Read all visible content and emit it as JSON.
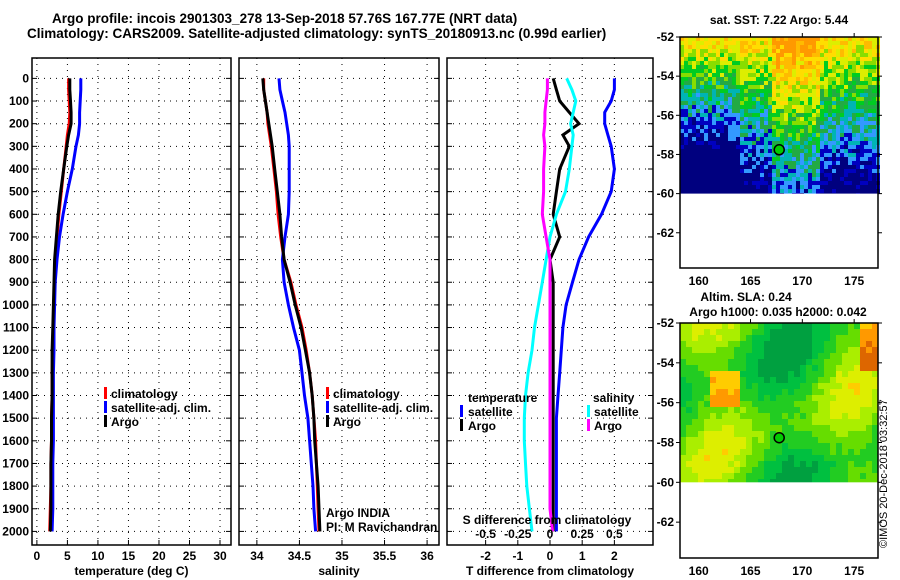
{
  "title_line1": "Argo profile: incois 2901303_278 13-Sep-2018 57.76S 167.77E (NRT data)",
  "title_line2": "Climatology: CARS2009. Satellite-adjusted climatology: synTS_20180913.nc (0.99d earlier)",
  "credit": "©IMOS 20-Dec-2018 03:32:57",
  "colors": {
    "climatology": "#ff0000",
    "satellite": "#0000ff",
    "argo": "#000000",
    "sal_sat": "#00ffff",
    "sal_argo": "#ff00ff"
  },
  "depth_ticks": [
    "0",
    "100",
    "200",
    "300",
    "400",
    "500",
    "600",
    "700",
    "800",
    "900",
    "1000",
    "1100",
    "1200",
    "1300",
    "1400",
    "1500",
    "1600",
    "1700",
    "1800",
    "1900",
    "2000"
  ],
  "chart_data": [
    {
      "type": "line",
      "id": "temperature",
      "xlabel": "temperature (deg C)",
      "ylabel": "depth",
      "xlim": [
        -0.8,
        31.8
      ],
      "ylim": [
        2060,
        -90
      ],
      "xticks": [
        "0",
        "5",
        "10",
        "15",
        "20",
        "25",
        "30"
      ],
      "legend": [
        "climatology",
        "satellite-adj. clim.",
        "Argo"
      ],
      "depth": [
        0,
        50,
        100,
        150,
        200,
        250,
        300,
        400,
        500,
        600,
        700,
        800,
        900,
        1000,
        1100,
        1200,
        1300,
        1400,
        1500,
        1600,
        1700,
        1800,
        1900,
        2000
      ],
      "series": [
        {
          "name": "climatology",
          "color": "#ff0000",
          "values": [
            5.2,
            5.2,
            5.3,
            5.4,
            5.3,
            5.0,
            4.8,
            4.4,
            4.0,
            3.6,
            3.3,
            3.0,
            2.9,
            2.8,
            2.7,
            2.6,
            2.5,
            2.5,
            2.4,
            2.4,
            2.3,
            2.3,
            2.2,
            2.1
          ]
        },
        {
          "name": "satellite-adj. clim.",
          "color": "#0000ff",
          "values": [
            7.2,
            7.2,
            7.1,
            7.0,
            7.0,
            6.8,
            6.4,
            5.8,
            5.0,
            4.3,
            3.7,
            3.3,
            3.0,
            2.9,
            2.8,
            2.8,
            2.7,
            2.7,
            2.7,
            2.7,
            2.6,
            2.6,
            2.6,
            2.5
          ]
        },
        {
          "name": "Argo",
          "color": "#000000",
          "values": [
            5.4,
            5.4,
            5.5,
            5.6,
            5.6,
            5.2,
            4.9,
            4.4,
            3.9,
            3.5,
            3.2,
            2.9,
            2.8,
            2.7,
            2.6,
            2.5,
            2.5,
            2.5,
            2.4,
            2.4,
            2.3,
            2.3,
            2.3,
            2.2
          ]
        }
      ]
    },
    {
      "type": "line",
      "id": "salinity",
      "xlabel": "salinity",
      "ylabel": "depth",
      "xlim": [
        33.79,
        36.14
      ],
      "ylim": [
        2060,
        -90
      ],
      "xticks": [
        "34",
        "34.5",
        "35",
        "35.5",
        "36"
      ],
      "legend": [
        "climatology",
        "satellite-adj. clim.",
        "Argo"
      ],
      "annotation": [
        "Argo INDIA",
        "PI: M Ravichandran"
      ],
      "depth": [
        0,
        50,
        100,
        150,
        200,
        250,
        300,
        400,
        500,
        600,
        700,
        800,
        900,
        1000,
        1100,
        1200,
        1300,
        1400,
        1500,
        1600,
        1700,
        1800,
        1900,
        2000
      ],
      "series": [
        {
          "name": "climatology",
          "color": "#ff0000",
          "values": [
            34.08,
            34.08,
            34.1,
            34.12,
            34.13,
            34.15,
            34.17,
            34.2,
            34.23,
            34.25,
            34.28,
            34.32,
            34.4,
            34.46,
            34.53,
            34.58,
            34.62,
            34.65,
            34.67,
            34.69,
            34.7,
            34.71,
            34.72,
            34.73
          ]
        },
        {
          "name": "satellite-adj. clim.",
          "color": "#0000ff",
          "values": [
            34.26,
            34.27,
            34.3,
            34.33,
            34.35,
            34.37,
            34.38,
            34.38,
            34.38,
            34.37,
            34.33,
            34.3,
            34.32,
            34.37,
            34.43,
            34.5,
            34.53,
            34.56,
            34.6,
            34.62,
            34.64,
            34.66,
            34.67,
            34.69
          ]
        },
        {
          "name": "Argo",
          "color": "#000000",
          "values": [
            34.07,
            34.08,
            34.1,
            34.12,
            34.14,
            34.16,
            34.18,
            34.21,
            34.24,
            34.27,
            34.29,
            34.32,
            34.39,
            34.45,
            34.52,
            34.57,
            34.62,
            34.65,
            34.67,
            34.68,
            34.7,
            34.72,
            34.73,
            34.74
          ]
        }
      ]
    },
    {
      "type": "line",
      "id": "difference",
      "xlabel": "T difference from climatology",
      "x2label": "S difference from climatology",
      "xlim": [
        -3.2,
        3.2
      ],
      "x2lim": [
        -0.8,
        0.8
      ],
      "ylim": [
        2060,
        -90
      ],
      "xticks": [
        "-2",
        "-1",
        "0",
        "1",
        "2"
      ],
      "x2ticks": [
        "-0.5",
        "-0.25",
        "0",
        "0.25",
        "0.5"
      ],
      "legend_temperature": {
        "title": "temperature",
        "items": [
          "satellite",
          "Argo"
        ]
      },
      "legend_salinity": {
        "title": "salinity",
        "items": [
          "satellite",
          "Argo"
        ]
      },
      "depth": [
        0,
        50,
        100,
        150,
        200,
        250,
        300,
        400,
        500,
        600,
        700,
        800,
        900,
        1000,
        1100,
        1200,
        1300,
        1400,
        1500,
        1600,
        1700,
        1800,
        1900,
        2000
      ],
      "series": [
        {
          "name": "T satellite",
          "axis": "T",
          "color": "#0000ff",
          "values": [
            2.0,
            2.0,
            1.9,
            1.7,
            1.7,
            1.8,
            1.9,
            2.0,
            1.9,
            1.6,
            1.2,
            0.9,
            0.7,
            0.5,
            0.4,
            0.35,
            0.3,
            0.25,
            0.2,
            0.2,
            0.2,
            0.2,
            0.2,
            0.2
          ]
        },
        {
          "name": "T Argo",
          "axis": "T",
          "color": "#000000",
          "values": [
            0.1,
            0.2,
            0.3,
            0.6,
            0.9,
            0.4,
            0.6,
            0.3,
            0.2,
            0.1,
            0.3,
            0.0,
            0.1,
            0.1,
            0.1,
            0.1,
            0.1,
            0.1,
            0.1,
            0.1,
            0.1,
            0.1,
            0.1,
            0.1
          ]
        },
        {
          "name": "S satellite",
          "axis": "S",
          "color": "#00ffff",
          "values": [
            0.13,
            0.17,
            0.2,
            0.18,
            0.16,
            0.18,
            0.17,
            0.15,
            0.12,
            0.05,
            0.0,
            -0.03,
            -0.06,
            -0.09,
            -0.12,
            -0.14,
            -0.17,
            -0.19,
            -0.2,
            -0.2,
            -0.19,
            -0.18,
            -0.16,
            -0.14
          ]
        },
        {
          "name": "S Argo",
          "axis": "S",
          "color": "#ff00ff",
          "values": [
            -0.02,
            -0.02,
            -0.03,
            -0.04,
            -0.04,
            -0.05,
            -0.04,
            -0.05,
            -0.05,
            -0.06,
            -0.03,
            0.0,
            0.0,
            0.0,
            0.0,
            0.0,
            0.0,
            0.0,
            0.0,
            0.0,
            0.0,
            0.0,
            0.0,
            0.02
          ]
        }
      ]
    },
    {
      "type": "heatmap",
      "id": "sst-map",
      "title": "sat. SST: 7.22 Argo: 5.44",
      "xticks": [
        "160",
        "165",
        "170",
        "175"
      ],
      "yticks": [
        "-52",
        "-54",
        "-56",
        "-58",
        "-60",
        "-62"
      ],
      "xlim": [
        158.2,
        177.3
      ],
      "ylim": [
        -63.8,
        -52
      ],
      "data_lat_min": -60,
      "argo_position": {
        "lon": 167.77,
        "lat": -57.76
      }
    },
    {
      "type": "heatmap",
      "id": "sla-map",
      "title": "Altim. SLA: 0.24",
      "subtitle": "Argo h1000: 0.035 h2000: 0.042",
      "xticks": [
        "160",
        "165",
        "170",
        "175"
      ],
      "yticks": [
        "-52",
        "-54",
        "-56",
        "-58",
        "-60",
        "-62"
      ],
      "xlim": [
        158.2,
        177.3
      ],
      "ylim": [
        -63.8,
        -52
      ],
      "data_lat_min": -60,
      "argo_position": {
        "lon": 167.77,
        "lat": -57.76
      }
    }
  ]
}
